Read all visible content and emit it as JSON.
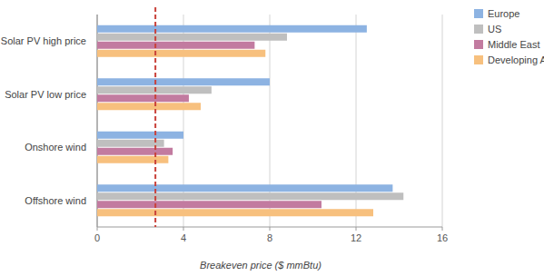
{
  "chart_data": {
    "type": "bar",
    "orientation": "horizontal",
    "x_label": "Breakeven price ($ mmBtu)",
    "categories": [
      "Solar PV high price",
      "Solar PV low price",
      "Onshore wind",
      "Offshore wind"
    ],
    "series": [
      {
        "name": "Europe",
        "color": "#8db3e2",
        "values": [
          12.5,
          8.0,
          4.0,
          13.7
        ]
      },
      {
        "name": "US",
        "color": "#bfbfbf",
        "values": [
          8.8,
          5.3,
          3.1,
          14.2
        ]
      },
      {
        "name": "Middle East",
        "color": "#c27ba0",
        "values": [
          7.3,
          4.25,
          3.5,
          10.4
        ]
      },
      {
        "name": "Developing Asia",
        "color": "#f7c07e",
        "values": [
          7.8,
          4.8,
          3.3,
          12.8
        ]
      }
    ],
    "xlim": [
      0,
      16
    ],
    "xticks": [
      0,
      4,
      8,
      12,
      16
    ],
    "grid": true,
    "legend": "top-right",
    "reference_line": {
      "value": 2.7,
      "color": "#c9413a",
      "line_style": "dashed"
    }
  }
}
